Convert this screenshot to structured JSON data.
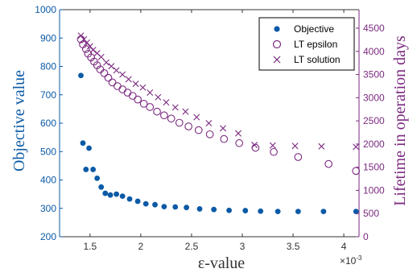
{
  "chart_data": {
    "type": "scatter",
    "xlabel": "ε-value",
    "x_multiplier_label": "×10",
    "x_multiplier_exp": "-3",
    "xlim": [
      1.2,
      4.15
    ],
    "x_ticks": [
      "1.5",
      "2",
      "2.5",
      "3",
      "3.5",
      "4"
    ],
    "x_tick_values": [
      1.5,
      2,
      2.5,
      3,
      3.5,
      4
    ],
    "left_axis": {
      "label": "Objective value",
      "ylim": [
        200,
        1000
      ],
      "ticks": [
        "200",
        "300",
        "400",
        "500",
        "600",
        "700",
        "800",
        "900",
        "1000"
      ],
      "tick_values": [
        200,
        300,
        400,
        500,
        600,
        700,
        800,
        900,
        1000
      ],
      "color": "#0b5aa6"
    },
    "right_axis": {
      "label": "Lifetime in operation days",
      "ylim": [
        0,
        4900
      ],
      "ticks": [
        "0",
        "500",
        "1000",
        "1500",
        "2000",
        "2500",
        "3000",
        "3500",
        "4000",
        "4500"
      ],
      "tick_values": [
        0,
        500,
        1000,
        1500,
        2000,
        2500,
        3000,
        3500,
        4000,
        4500
      ],
      "color": "#7b2a80"
    },
    "legend_position": "top-right",
    "grid": false,
    "series": [
      {
        "name": "Objective",
        "axis": "left",
        "marker": "filled-circle",
        "color": "#0b5aa6",
        "x": [
          1.41,
          1.43,
          1.46,
          1.49,
          1.53,
          1.57,
          1.61,
          1.65,
          1.7,
          1.76,
          1.82,
          1.89,
          1.97,
          2.05,
          2.14,
          2.23,
          2.34,
          2.45,
          2.58,
          2.72,
          2.87,
          3.03,
          3.18,
          3.35,
          3.55,
          3.8,
          4.12
        ],
        "y": [
          768,
          530,
          437,
          512,
          437,
          406,
          375,
          353,
          347,
          350,
          343,
          333,
          325,
          316,
          313,
          306,
          305,
          303,
          298,
          296,
          293,
          292,
          290,
          289,
          289,
          289,
          289
        ]
      },
      {
        "name": "LT epsilon",
        "axis": "right",
        "marker": "open-circle",
        "color": "#7b2a80",
        "x": [
          1.41,
          1.43,
          1.46,
          1.48,
          1.51,
          1.54,
          1.57,
          1.6,
          1.64,
          1.68,
          1.72,
          1.77,
          1.82,
          1.87,
          1.92,
          1.97,
          2.03,
          2.09,
          2.16,
          2.23,
          2.3,
          2.38,
          2.47,
          2.57,
          2.68,
          2.82,
          2.97,
          3.13,
          3.31,
          3.55,
          3.85,
          4.12
        ],
        "y": [
          4260,
          4150,
          4050,
          3950,
          3870,
          3780,
          3700,
          3610,
          3530,
          3430,
          3330,
          3250,
          3180,
          3110,
          3040,
          2960,
          2870,
          2800,
          2700,
          2620,
          2550,
          2460,
          2380,
          2300,
          2210,
          2110,
          2020,
          1920,
          1830,
          1720,
          1570,
          1420
        ]
      },
      {
        "name": "LT solution",
        "axis": "right",
        "marker": "x",
        "color": "#7b2a80",
        "x": [
          1.41,
          1.44,
          1.47,
          1.5,
          1.53,
          1.57,
          1.61,
          1.66,
          1.71,
          1.76,
          1.82,
          1.88,
          1.95,
          2.02,
          2.09,
          2.17,
          2.25,
          2.34,
          2.44,
          2.55,
          2.67,
          2.81,
          2.96,
          3.12,
          3.3,
          3.52,
          3.78,
          4.12
        ],
        "y": [
          4340,
          4260,
          4190,
          4110,
          4030,
          3960,
          3880,
          3760,
          3680,
          3590,
          3500,
          3400,
          3300,
          3220,
          3110,
          3010,
          2900,
          2790,
          2700,
          2580,
          2450,
          2340,
          2230,
          1980,
          1970,
          1960,
          1950,
          1940
        ]
      }
    ]
  }
}
